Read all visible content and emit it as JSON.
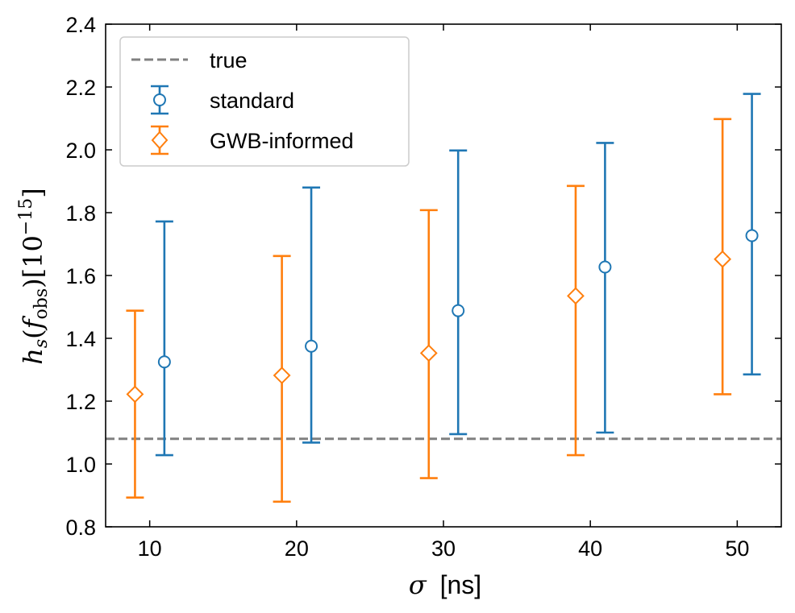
{
  "chart_data": {
    "type": "scatter",
    "title": "",
    "xlabel_symbol": "σ",
    "xlabel_unit": "[ns]",
    "ylabel": {
      "h": "h",
      "sub_s": "s",
      "open_paren": "(",
      "f": "f",
      "sub_obs": "obs",
      "close_paren": ")",
      "bracket_open": "[10",
      "exponent": "−15",
      "bracket_close": "]"
    },
    "xlim": [
      7,
      53
    ],
    "ylim": [
      0.8,
      2.4
    ],
    "xticks": [
      10,
      20,
      30,
      40,
      50
    ],
    "xtick_labels": [
      "10",
      "20",
      "30",
      "40",
      "50"
    ],
    "yticks": [
      0.8,
      1.0,
      1.2,
      1.4,
      1.6,
      1.8,
      2.0,
      2.2,
      2.4
    ],
    "ytick_labels": [
      "0.8",
      "1.0",
      "1.2",
      "1.4",
      "1.6",
      "1.8",
      "2.0",
      "2.2",
      "2.4"
    ],
    "true_value": 1.08,
    "legend_position": "upper-left",
    "series": [
      {
        "name": "standard",
        "marker": "circle",
        "color": "#1f77b4",
        "x": [
          11,
          21,
          31,
          41,
          51
        ],
        "y": [
          1.325,
          1.375,
          1.488,
          1.627,
          1.727
        ],
        "lower": [
          1.028,
          1.068,
          1.095,
          1.1,
          1.285
        ],
        "upper": [
          1.772,
          1.88,
          1.998,
          2.022,
          2.178
        ]
      },
      {
        "name": "GWB-informed",
        "marker": "diamond",
        "color": "#ff7f0e",
        "x": [
          9,
          19,
          29,
          39,
          49
        ],
        "y": [
          1.222,
          1.282,
          1.353,
          1.535,
          1.652
        ],
        "lower": [
          0.893,
          0.88,
          0.955,
          1.028,
          1.222
        ],
        "upper": [
          1.488,
          1.662,
          1.808,
          1.885,
          2.098
        ]
      }
    ],
    "reference_line": {
      "name": "true",
      "color": "#808080",
      "style": "dashed"
    }
  }
}
